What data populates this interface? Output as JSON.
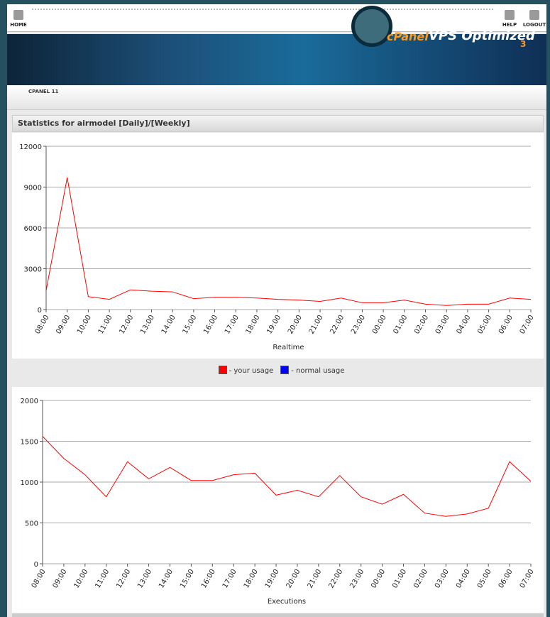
{
  "nav": {
    "home": "HOME",
    "help": "HELP",
    "logout": "LOGOUT"
  },
  "banner": {
    "brand": "cPanel",
    "product": "VPS Optimized",
    "version": "3"
  },
  "tab": "CPANEL 11",
  "header": {
    "title": "Statistics for airmodel",
    "daily": "[Daily]",
    "separator": "/",
    "weekly": "[Weekly]"
  },
  "legend": [
    {
      "label": "- your usage",
      "color": "#ff0000"
    },
    {
      "label": "- normal usage",
      "color": "#0000ff"
    }
  ],
  "chart_data": [
    {
      "type": "line",
      "xlabel": "Realtime",
      "categories": [
        "08:00",
        "09:00",
        "10:00",
        "11:00",
        "12:00",
        "13:00",
        "14:00",
        "15:00",
        "16:00",
        "17:00",
        "18:00",
        "19:00",
        "20:00",
        "21:00",
        "22:00",
        "23:00",
        "00:00",
        "01:00",
        "02:00",
        "03:00",
        "04:00",
        "05:00",
        "06:00",
        "07:00"
      ],
      "series": [
        {
          "color": "#ff0000",
          "values": [
            1400,
            9700,
            950,
            750,
            1450,
            1350,
            1300,
            800,
            900,
            900,
            850,
            750,
            700,
            600,
            850,
            500,
            500,
            700,
            400,
            300,
            400,
            400,
            850,
            750
          ]
        }
      ],
      "ylim": [
        0,
        12000
      ],
      "yticks": [
        0,
        3000,
        6000,
        9000,
        12000
      ],
      "grid": true
    },
    {
      "type": "line",
      "xlabel": "Executions",
      "categories": [
        "08:00",
        "09:00",
        "10:00",
        "11:00",
        "12:00",
        "13:00",
        "14:00",
        "15:00",
        "16:00",
        "17:00",
        "18:00",
        "19:00",
        "20:00",
        "21:00",
        "22:00",
        "23:00",
        "00:00",
        "01:00",
        "02:00",
        "03:00",
        "04:00",
        "05:00",
        "06:00",
        "07:00"
      ],
      "series": [
        {
          "color": "#ff0000",
          "values": [
            1560,
            1290,
            1090,
            820,
            1250,
            1040,
            1180,
            1020,
            1020,
            1090,
            1110,
            840,
            900,
            820,
            1080,
            820,
            730,
            850,
            620,
            580,
            610,
            680,
            1250,
            1010
          ]
        }
      ],
      "ylim": [
        0,
        2000
      ],
      "yticks": [
        0,
        500,
        1000,
        1500,
        2000
      ],
      "grid": true
    }
  ]
}
